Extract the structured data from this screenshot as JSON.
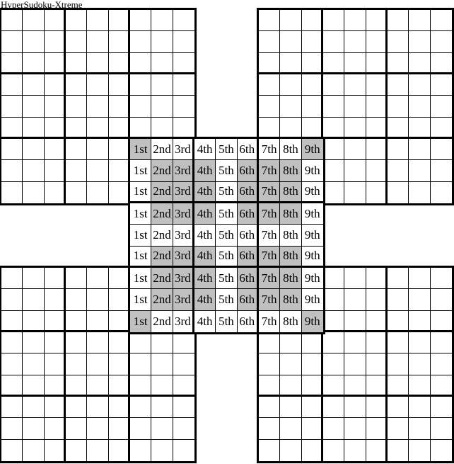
{
  "title": "HyperSudoku-Xtreme",
  "colors": {
    "line": "#000000",
    "text": "#000000",
    "cell_background": "#ffffff",
    "shaded": "#c0c0c0"
  },
  "center_labels": [
    "1st",
    "2nd",
    "3rd",
    "4th",
    "5th",
    "6th",
    "7th",
    "8th",
    "9th"
  ],
  "center_shading": [
    [
      1,
      0,
      0,
      0,
      0,
      0,
      0,
      0,
      1
    ],
    [
      0,
      1,
      1,
      1,
      0,
      1,
      1,
      1,
      0
    ],
    [
      0,
      1,
      1,
      1,
      0,
      1,
      1,
      1,
      0
    ],
    [
      0,
      1,
      1,
      1,
      0,
      1,
      1,
      1,
      0
    ],
    [
      0,
      0,
      0,
      0,
      0,
      0,
      0,
      0,
      0
    ],
    [
      0,
      1,
      1,
      1,
      0,
      1,
      1,
      1,
      0
    ],
    [
      0,
      1,
      1,
      1,
      0,
      1,
      1,
      1,
      0
    ],
    [
      0,
      1,
      1,
      1,
      0,
      1,
      1,
      1,
      0
    ],
    [
      1,
      0,
      0,
      0,
      0,
      0,
      0,
      0,
      1
    ]
  ]
}
